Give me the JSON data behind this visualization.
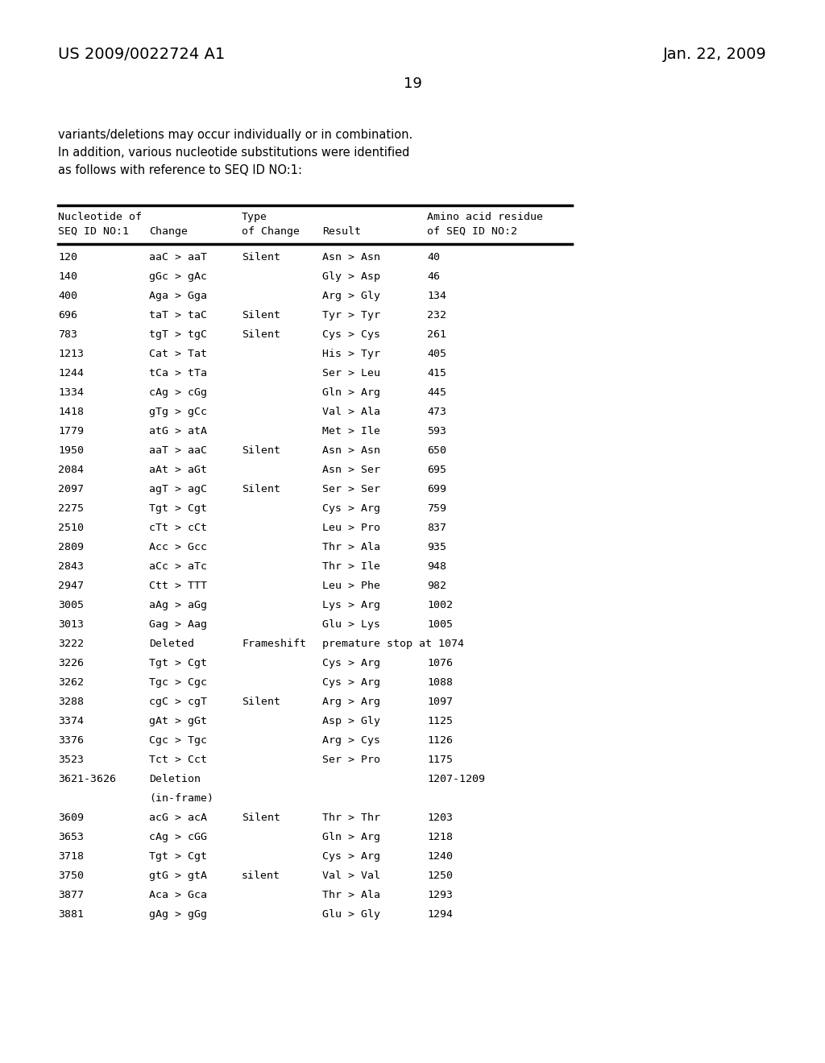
{
  "header_left": "US 2009/0022724 A1",
  "header_right": "Jan. 22, 2009",
  "page_number": "19",
  "intro_lines": [
    "variants/deletions may occur individually or in combination.",
    "In addition, various nucleotide substitutions were identified",
    "as follows with reference to SEQ ID NO:1:"
  ],
  "rows": [
    [
      "120",
      "aaC > aaT",
      "Silent",
      "Asn > Asn",
      "40"
    ],
    [
      "140",
      "gGc > gAc",
      "",
      "Gly > Asp",
      "46"
    ],
    [
      "400",
      "Aga > Gga",
      "",
      "Arg > Gly",
      "134"
    ],
    [
      "696",
      "taT > taC",
      "Silent",
      "Tyr > Tyr",
      "232"
    ],
    [
      "783",
      "tgT > tgC",
      "Silent",
      "Cys > Cys",
      "261"
    ],
    [
      "1213",
      "Cat > Tat",
      "",
      "His > Tyr",
      "405"
    ],
    [
      "1244",
      "tCa > tTa",
      "",
      "Ser > Leu",
      "415"
    ],
    [
      "1334",
      "cAg > cGg",
      "",
      "Gln > Arg",
      "445"
    ],
    [
      "1418",
      "gTg > gCc",
      "",
      "Val > Ala",
      "473"
    ],
    [
      "1779",
      "atG > atA",
      "",
      "Met > Ile",
      "593"
    ],
    [
      "1950",
      "aaT > aaC",
      "Silent",
      "Asn > Asn",
      "650"
    ],
    [
      "2084",
      "aAt > aGt",
      "",
      "Asn > Ser",
      "695"
    ],
    [
      "2097",
      "agT > agC",
      "Silent",
      "Ser > Ser",
      "699"
    ],
    [
      "2275",
      "Tgt > Cgt",
      "",
      "Cys > Arg",
      "759"
    ],
    [
      "2510",
      "cTt > cCt",
      "",
      "Leu > Pro",
      "837"
    ],
    [
      "2809",
      "Acc > Gcc",
      "",
      "Thr > Ala",
      "935"
    ],
    [
      "2843",
      "aCc > aTc",
      "",
      "Thr > Ile",
      "948"
    ],
    [
      "2947",
      "Ctt > TTT",
      "",
      "Leu > Phe",
      "982"
    ],
    [
      "3005",
      "aAg > aGg",
      "",
      "Lys > Arg",
      "1002"
    ],
    [
      "3013",
      "Gag > Aag",
      "",
      "Glu > Lys",
      "1005"
    ],
    [
      "3222",
      "Deleted",
      "Frameshift",
      "premature stop at 1074",
      ""
    ],
    [
      "3226",
      "Tgt > Cgt",
      "",
      "Cys > Arg",
      "1076"
    ],
    [
      "3262",
      "Tgc > Cgc",
      "",
      "Cys > Arg",
      "1088"
    ],
    [
      "3288",
      "cgC > cgT",
      "Silent",
      "Arg > Arg",
      "1097"
    ],
    [
      "3374",
      "gAt > gGt",
      "",
      "Asp > Gly",
      "1125"
    ],
    [
      "3376",
      "Cgc > Tgc",
      "",
      "Arg > Cys",
      "1126"
    ],
    [
      "3523",
      "Tct > Cct",
      "",
      "Ser > Pro",
      "1175"
    ],
    [
      "3621-3626",
      "Deletion",
      "",
      "",
      "1207-1209"
    ],
    [
      "",
      "(in-frame)",
      "",
      "",
      ""
    ],
    [
      "3609",
      "acG > acA",
      "Silent",
      "Thr > Thr",
      "1203"
    ],
    [
      "3653",
      "cAg > cGG",
      "",
      "Gln > Arg",
      "1218"
    ],
    [
      "3718",
      "Tgt > Cgt",
      "",
      "Cys > Arg",
      "1240"
    ],
    [
      "3750",
      "gtG > gtA",
      "silent",
      "Val > Val",
      "1250"
    ],
    [
      "3877",
      "Aca > Gca",
      "",
      "Thr > Ala",
      "1293"
    ],
    [
      "3881",
      "gAg > gGg",
      "",
      "Glu > Gly",
      "1294"
    ]
  ],
  "bg_color": "#ffffff",
  "text_color": "#000000"
}
